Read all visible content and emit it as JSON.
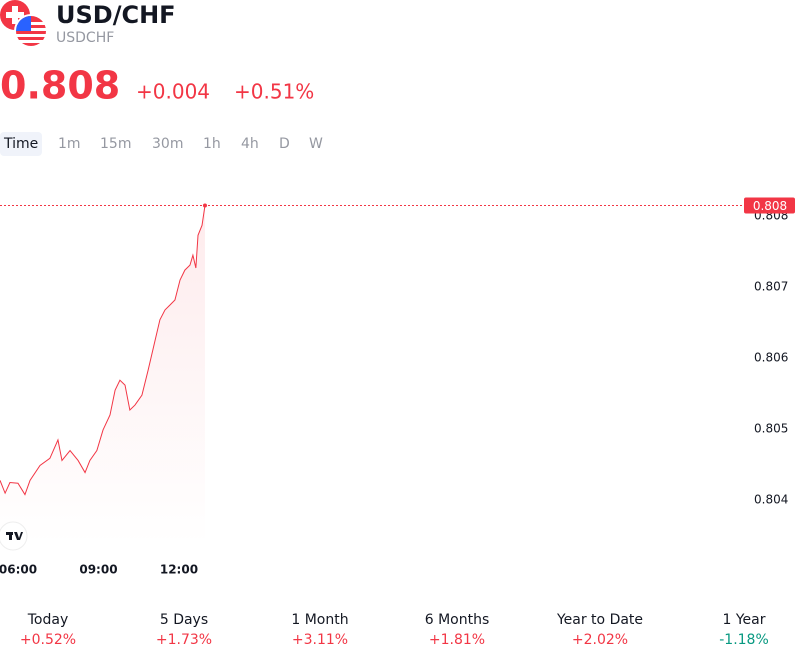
{
  "header": {
    "title": "USD/CHF",
    "symbol": "USDCHF",
    "price": "0.808",
    "change": "+0.004",
    "change_pct": "+0.51%"
  },
  "timeframes": {
    "items": [
      "Time",
      "1m",
      "15m",
      "30m",
      "1h",
      "4h",
      "D",
      "W"
    ],
    "active": 0
  },
  "chart_data": {
    "type": "line",
    "color": "#f23645",
    "x": [
      5.33,
      5.52,
      5.7,
      6.0,
      6.26,
      6.45,
      6.82,
      7.19,
      7.49,
      7.64,
      7.94,
      8.24,
      8.5,
      8.68,
      8.94,
      9.17,
      9.43,
      9.62,
      9.8,
      9.99,
      10.17,
      10.36,
      10.62,
      10.85,
      11.11,
      11.29,
      11.48,
      11.67,
      11.85,
      12.04,
      12.22,
      12.41,
      12.52,
      12.63,
      12.71,
      12.86,
      12.97
    ],
    "values": [
      0.80428,
      0.8041,
      0.80425,
      0.80424,
      0.80408,
      0.80428,
      0.80449,
      0.80459,
      0.80485,
      0.80456,
      0.8047,
      0.80456,
      0.80439,
      0.80456,
      0.8047,
      0.80499,
      0.8052,
      0.80555,
      0.80569,
      0.80562,
      0.80527,
      0.80534,
      0.80548,
      0.80583,
      0.80625,
      0.80654,
      0.80668,
      0.80675,
      0.80682,
      0.8071,
      0.80724,
      0.80731,
      0.80745,
      0.80727,
      0.80773,
      0.80787,
      0.80815
    ],
    "xlim": [
      5.33,
      33.06
    ],
    "xticks": [
      {
        "value": 6,
        "label": "06:00"
      },
      {
        "value": 9,
        "label": "09:00"
      },
      {
        "value": 12,
        "label": "12:00"
      }
    ],
    "ylim": [
      0.80337,
      0.80879
    ],
    "yticks": [
      0.804,
      0.805,
      0.806,
      0.807,
      0.808
    ],
    "price_line": {
      "value": 0.80815,
      "label": "0.808"
    }
  },
  "performance": [
    {
      "label": "Today",
      "value": "+0.52%"
    },
    {
      "label": "5 Days",
      "value": "+1.73%"
    },
    {
      "label": "1 Month",
      "value": "+3.11%"
    },
    {
      "label": "6 Months",
      "value": "+1.81%"
    },
    {
      "label": "Year to Date",
      "value": "+2.02%"
    },
    {
      "label": "1 Year",
      "value": "-1.18%"
    }
  ]
}
